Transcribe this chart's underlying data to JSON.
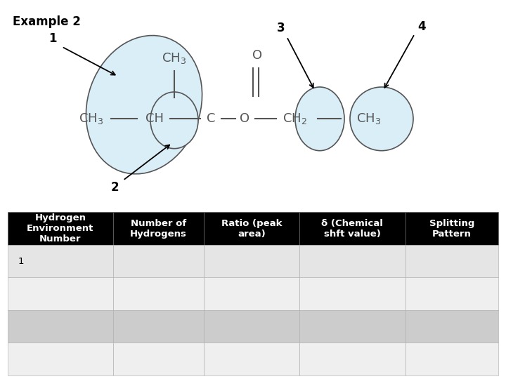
{
  "title": "Example 2",
  "table_headers": [
    "Hydrogen\nEnvironment\nNumber",
    "Number of\nHydrogens",
    "Ratio (peak\narea)",
    "δ (Chemical\nshft value)",
    "Splitting\nPattern"
  ],
  "table_rows": [
    [
      "1",
      "",
      "",
      "",
      ""
    ],
    [
      "",
      "",
      "",
      "",
      ""
    ],
    [
      "",
      "",
      "",
      "",
      ""
    ],
    [
      "",
      "",
      "",
      "",
      ""
    ]
  ],
  "row_colors": [
    "#e5e5e5",
    "#efefef",
    "#cccccc",
    "#efefef"
  ],
  "header_bg": "#000000",
  "header_fg": "#ffffff",
  "background_color": "#ffffff",
  "mol_color": "#555555",
  "mol_fsize": 13,
  "ellipse_fill": "#daeef8",
  "ellipse_edge": "#555555"
}
